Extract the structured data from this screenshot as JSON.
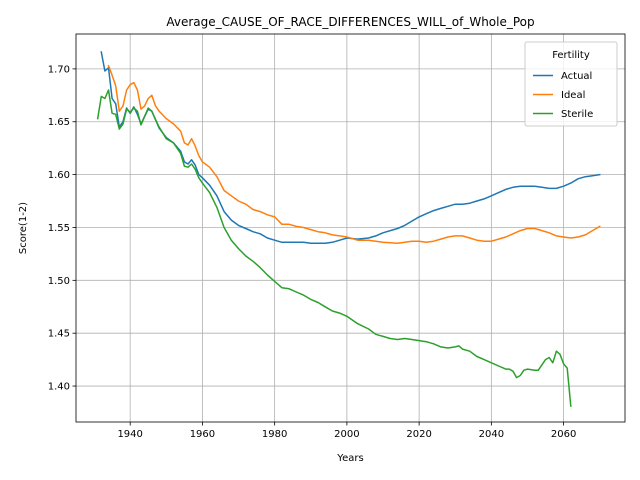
{
  "chart_data": {
    "type": "line",
    "title": "Average_CAUSE_OF_RACE_DIFFERENCES_WILL_of_Whole_Pop",
    "xlabel": "Years",
    "ylabel": "Score(1-2)",
    "xlim": [
      1925,
      2077
    ],
    "ylim": [
      1.366,
      1.733
    ],
    "xticks": [
      1940,
      1960,
      1980,
      2000,
      2020,
      2040,
      2060
    ],
    "yticks": [
      1.4,
      1.45,
      1.5,
      1.55,
      1.6,
      1.65,
      1.7
    ],
    "xtick_labels": [
      "1940",
      "1960",
      "1980",
      "2000",
      "2020",
      "2040",
      "2060"
    ],
    "ytick_labels": [
      "1.40",
      "1.45",
      "1.50",
      "1.55",
      "1.60",
      "1.65",
      "1.70"
    ],
    "grid": true,
    "legend": {
      "title": "Fertility",
      "placement": "top-right"
    },
    "series": [
      {
        "name": "Actual",
        "color": "#1f77b4",
        "points": [
          [
            1932,
            1.716
          ],
          [
            1933,
            1.698
          ],
          [
            1934,
            1.701
          ],
          [
            1935,
            1.672
          ],
          [
            1936,
            1.667
          ],
          [
            1937,
            1.645
          ],
          [
            1938,
            1.65
          ],
          [
            1939,
            1.663
          ],
          [
            1940,
            1.658
          ],
          [
            1941,
            1.664
          ],
          [
            1942,
            1.657
          ],
          [
            1943,
            1.648
          ],
          [
            1944,
            1.655
          ],
          [
            1945,
            1.662
          ],
          [
            1946,
            1.66
          ],
          [
            1947,
            1.652
          ],
          [
            1948,
            1.644
          ],
          [
            1950,
            1.635
          ],
          [
            1952,
            1.63
          ],
          [
            1954,
            1.622
          ],
          [
            1955,
            1.612
          ],
          [
            1956,
            1.61
          ],
          [
            1957,
            1.614
          ],
          [
            1958,
            1.609
          ],
          [
            1959,
            1.6
          ],
          [
            1960,
            1.597
          ],
          [
            1962,
            1.59
          ],
          [
            1964,
            1.58
          ],
          [
            1966,
            1.565
          ],
          [
            1968,
            1.557
          ],
          [
            1970,
            1.552
          ],
          [
            1972,
            1.549
          ],
          [
            1974,
            1.546
          ],
          [
            1976,
            1.544
          ],
          [
            1978,
            1.54
          ],
          [
            1980,
            1.538
          ],
          [
            1982,
            1.536
          ],
          [
            1984,
            1.536
          ],
          [
            1986,
            1.536
          ],
          [
            1988,
            1.536
          ],
          [
            1990,
            1.535
          ],
          [
            1992,
            1.535
          ],
          [
            1994,
            1.535
          ],
          [
            1996,
            1.536
          ],
          [
            1998,
            1.538
          ],
          [
            2000,
            1.54
          ],
          [
            2003,
            1.539
          ],
          [
            2006,
            1.54
          ],
          [
            2008,
            1.542
          ],
          [
            2010,
            1.545
          ],
          [
            2014,
            1.549
          ],
          [
            2016,
            1.552
          ],
          [
            2018,
            1.556
          ],
          [
            2020,
            1.56
          ],
          [
            2022,
            1.563
          ],
          [
            2024,
            1.566
          ],
          [
            2026,
            1.568
          ],
          [
            2028,
            1.57
          ],
          [
            2030,
            1.572
          ],
          [
            2032,
            1.572
          ],
          [
            2034,
            1.573
          ],
          [
            2036,
            1.575
          ],
          [
            2038,
            1.577
          ],
          [
            2040,
            1.58
          ],
          [
            2042,
            1.583
          ],
          [
            2044,
            1.586
          ],
          [
            2046,
            1.588
          ],
          [
            2048,
            1.589
          ],
          [
            2050,
            1.589
          ],
          [
            2052,
            1.589
          ],
          [
            2054,
            1.588
          ],
          [
            2056,
            1.587
          ],
          [
            2058,
            1.587
          ],
          [
            2060,
            1.589
          ],
          [
            2062,
            1.592
          ],
          [
            2064,
            1.596
          ],
          [
            2066,
            1.598
          ],
          [
            2068,
            1.599
          ],
          [
            2070,
            1.6
          ]
        ]
      },
      {
        "name": "Ideal",
        "color": "#ff7f0e",
        "points": [
          [
            1934,
            1.703
          ],
          [
            1935,
            1.694
          ],
          [
            1936,
            1.684
          ],
          [
            1937,
            1.66
          ],
          [
            1938,
            1.665
          ],
          [
            1939,
            1.68
          ],
          [
            1940,
            1.685
          ],
          [
            1941,
            1.687
          ],
          [
            1942,
            1.68
          ],
          [
            1943,
            1.662
          ],
          [
            1944,
            1.665
          ],
          [
            1945,
            1.672
          ],
          [
            1946,
            1.675
          ],
          [
            1947,
            1.665
          ],
          [
            1948,
            1.66
          ],
          [
            1950,
            1.653
          ],
          [
            1952,
            1.648
          ],
          [
            1954,
            1.641
          ],
          [
            1955,
            1.63
          ],
          [
            1956,
            1.628
          ],
          [
            1957,
            1.634
          ],
          [
            1958,
            1.627
          ],
          [
            1959,
            1.618
          ],
          [
            1960,
            1.612
          ],
          [
            1962,
            1.607
          ],
          [
            1964,
            1.598
          ],
          [
            1966,
            1.585
          ],
          [
            1968,
            1.58
          ],
          [
            1970,
            1.575
          ],
          [
            1972,
            1.572
          ],
          [
            1974,
            1.567
          ],
          [
            1976,
            1.565
          ],
          [
            1978,
            1.562
          ],
          [
            1980,
            1.56
          ],
          [
            1982,
            1.553
          ],
          [
            1984,
            1.553
          ],
          [
            1986,
            1.551
          ],
          [
            1988,
            1.55
          ],
          [
            1990,
            1.548
          ],
          [
            1992,
            1.546
          ],
          [
            1994,
            1.545
          ],
          [
            1996,
            1.543
          ],
          [
            1998,
            1.542
          ],
          [
            2000,
            1.541
          ],
          [
            2003,
            1.538
          ],
          [
            2006,
            1.538
          ],
          [
            2008,
            1.537
          ],
          [
            2010,
            1.536
          ],
          [
            2014,
            1.535
          ],
          [
            2016,
            1.536
          ],
          [
            2018,
            1.537
          ],
          [
            2020,
            1.537
          ],
          [
            2022,
            1.536
          ],
          [
            2024,
            1.537
          ],
          [
            2026,
            1.539
          ],
          [
            2028,
            1.541
          ],
          [
            2030,
            1.542
          ],
          [
            2032,
            1.542
          ],
          [
            2034,
            1.54
          ],
          [
            2036,
            1.538
          ],
          [
            2038,
            1.537
          ],
          [
            2040,
            1.537
          ],
          [
            2042,
            1.539
          ],
          [
            2044,
            1.541
          ],
          [
            2046,
            1.544
          ],
          [
            2048,
            1.547
          ],
          [
            2050,
            1.549
          ],
          [
            2052,
            1.549
          ],
          [
            2054,
            1.547
          ],
          [
            2056,
            1.545
          ],
          [
            2058,
            1.542
          ],
          [
            2060,
            1.541
          ],
          [
            2062,
            1.54
          ],
          [
            2064,
            1.541
          ],
          [
            2066,
            1.543
          ],
          [
            2068,
            1.547
          ],
          [
            2070,
            1.551
          ]
        ]
      },
      {
        "name": "Sterile",
        "color": "#2ca02c",
        "points": [
          [
            1931,
            1.653
          ],
          [
            1932,
            1.674
          ],
          [
            1933,
            1.672
          ],
          [
            1934,
            1.68
          ],
          [
            1935,
            1.658
          ],
          [
            1936,
            1.657
          ],
          [
            1937,
            1.643
          ],
          [
            1938,
            1.648
          ],
          [
            1939,
            1.662
          ],
          [
            1940,
            1.659
          ],
          [
            1941,
            1.663
          ],
          [
            1942,
            1.66
          ],
          [
            1943,
            1.647
          ],
          [
            1944,
            1.655
          ],
          [
            1945,
            1.663
          ],
          [
            1946,
            1.66
          ],
          [
            1947,
            1.652
          ],
          [
            1948,
            1.645
          ],
          [
            1950,
            1.634
          ],
          [
            1952,
            1.63
          ],
          [
            1954,
            1.62
          ],
          [
            1955,
            1.608
          ],
          [
            1956,
            1.607
          ],
          [
            1957,
            1.61
          ],
          [
            1958,
            1.605
          ],
          [
            1959,
            1.597
          ],
          [
            1960,
            1.592
          ],
          [
            1962,
            1.583
          ],
          [
            1964,
            1.569
          ],
          [
            1966,
            1.55
          ],
          [
            1968,
            1.538
          ],
          [
            1970,
            1.53
          ],
          [
            1972,
            1.523
          ],
          [
            1974,
            1.518
          ],
          [
            1976,
            1.512
          ],
          [
            1978,
            1.505
          ],
          [
            1980,
            1.499
          ],
          [
            1982,
            1.493
          ],
          [
            1984,
            1.492
          ],
          [
            1986,
            1.489
          ],
          [
            1988,
            1.486
          ],
          [
            1990,
            1.482
          ],
          [
            1992,
            1.479
          ],
          [
            1994,
            1.475
          ],
          [
            1996,
            1.471
          ],
          [
            1998,
            1.469
          ],
          [
            2000,
            1.466
          ],
          [
            2003,
            1.459
          ],
          [
            2006,
            1.454
          ],
          [
            2008,
            1.449
          ],
          [
            2010,
            1.447
          ],
          [
            2012,
            1.445
          ],
          [
            2014,
            1.444
          ],
          [
            2016,
            1.445
          ],
          [
            2018,
            1.444
          ],
          [
            2020,
            1.443
          ],
          [
            2022,
            1.442
          ],
          [
            2024,
            1.44
          ],
          [
            2026,
            1.437
          ],
          [
            2028,
            1.436
          ],
          [
            2030,
            1.437
          ],
          [
            2031,
            1.438
          ],
          [
            2032,
            1.435
          ],
          [
            2034,
            1.433
          ],
          [
            2036,
            1.428
          ],
          [
            2038,
            1.425
          ],
          [
            2040,
            1.422
          ],
          [
            2042,
            1.419
          ],
          [
            2044,
            1.416
          ],
          [
            2045,
            1.416
          ],
          [
            2046,
            1.414
          ],
          [
            2047,
            1.408
          ],
          [
            2048,
            1.41
          ],
          [
            2049,
            1.415
          ],
          [
            2050,
            1.416
          ],
          [
            2052,
            1.415
          ],
          [
            2053,
            1.415
          ],
          [
            2054,
            1.42
          ],
          [
            2055,
            1.425
          ],
          [
            2056,
            1.427
          ],
          [
            2057,
            1.422
          ],
          [
            2058,
            1.433
          ],
          [
            2059,
            1.43
          ],
          [
            2060,
            1.421
          ],
          [
            2061,
            1.417
          ],
          [
            2062,
            1.381
          ]
        ]
      }
    ]
  }
}
